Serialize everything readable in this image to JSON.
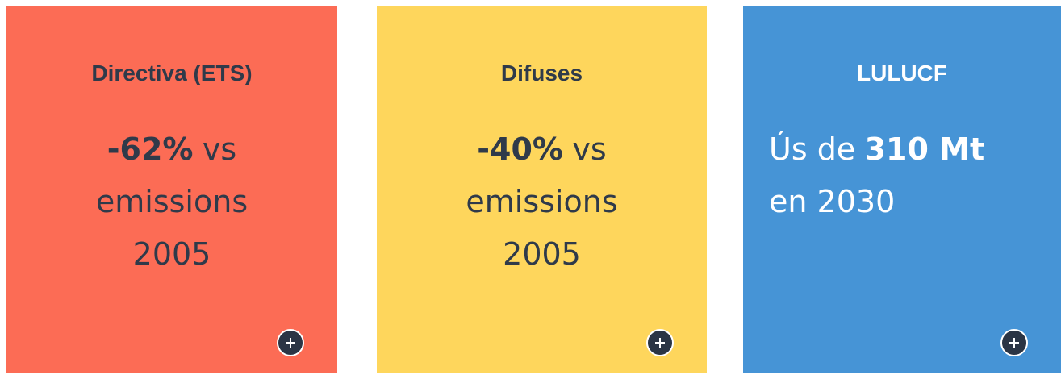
{
  "cards": [
    {
      "title": "Directiva (ETS)",
      "color": "#fc6c55",
      "text_color": "#2f3a4a",
      "align": "center",
      "lines": [
        [
          {
            "text": "-62%",
            "bold": true
          },
          {
            "text": "vs"
          }
        ],
        [
          {
            "text": "emissions"
          }
        ],
        [
          {
            "text": "2005"
          }
        ]
      ]
    },
    {
      "title": "Difuses",
      "color": "#fed65c",
      "text_color": "#2f3a4a",
      "align": "center",
      "lines": [
        [
          {
            "text": "-40%",
            "bold": true
          },
          {
            "text": "vs"
          }
        ],
        [
          {
            "text": "emissions"
          }
        ],
        [
          {
            "text": "2005"
          }
        ]
      ]
    },
    {
      "title": "LULUCF",
      "color": "#4694d6",
      "text_color": "#ffffff",
      "align": "left",
      "lines": [
        [
          {
            "text": "Ús de"
          },
          {
            "text": "310 Mt",
            "bold": true
          }
        ],
        [
          {
            "text": "en 2030"
          }
        ]
      ]
    }
  ]
}
